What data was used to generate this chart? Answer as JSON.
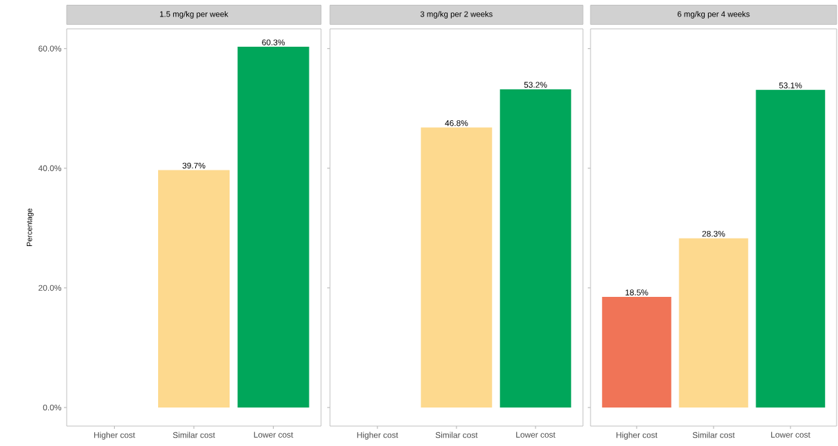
{
  "chart_data": [
    {
      "type": "bar",
      "title": "1.5 mg/kg per week",
      "ylabel": "Percentage",
      "categories": [
        "Higher cost",
        "Similar cost",
        "Lower cost"
      ],
      "values": [
        null,
        39.7,
        60.3
      ],
      "value_labels": [
        null,
        "39.7%",
        "60.3%"
      ],
      "colors": [
        "#f07457",
        "#fdd98e",
        "#00a65a"
      ],
      "ylim": [
        -3.1,
        63.3
      ],
      "yticks": [
        {
          "value": 0,
          "label": "0.0%"
        },
        {
          "value": 20,
          "label": "20.0%"
        },
        {
          "value": 40,
          "label": "40.0%"
        },
        {
          "value": 60,
          "label": "60.0%"
        }
      ]
    },
    {
      "type": "bar",
      "title": "3 mg/kg per 2 weeks",
      "categories": [
        "Higher cost",
        "Similar cost",
        "Lower cost"
      ],
      "values": [
        null,
        46.8,
        53.2
      ],
      "value_labels": [
        null,
        "46.8%",
        "53.2%"
      ],
      "colors": [
        "#f07457",
        "#fdd98e",
        "#00a65a"
      ],
      "ylim": [
        -3.1,
        63.3
      ],
      "tick_labels": "x"
    },
    {
      "type": "bar",
      "title": "6 mg/kg per 4 weeks",
      "categories": [
        "Higher cost",
        "Similar cost",
        "Lower cost"
      ],
      "values": [
        18.5,
        28.3,
        53.1
      ],
      "value_labels": [
        "18.5%",
        "28.3%",
        "53.1%"
      ],
      "colors": [
        "#f07457",
        "#fdd98e",
        "#00a65a"
      ],
      "ylim": [
        -3.1,
        63.3
      ],
      "tick_labels": "x"
    }
  ]
}
